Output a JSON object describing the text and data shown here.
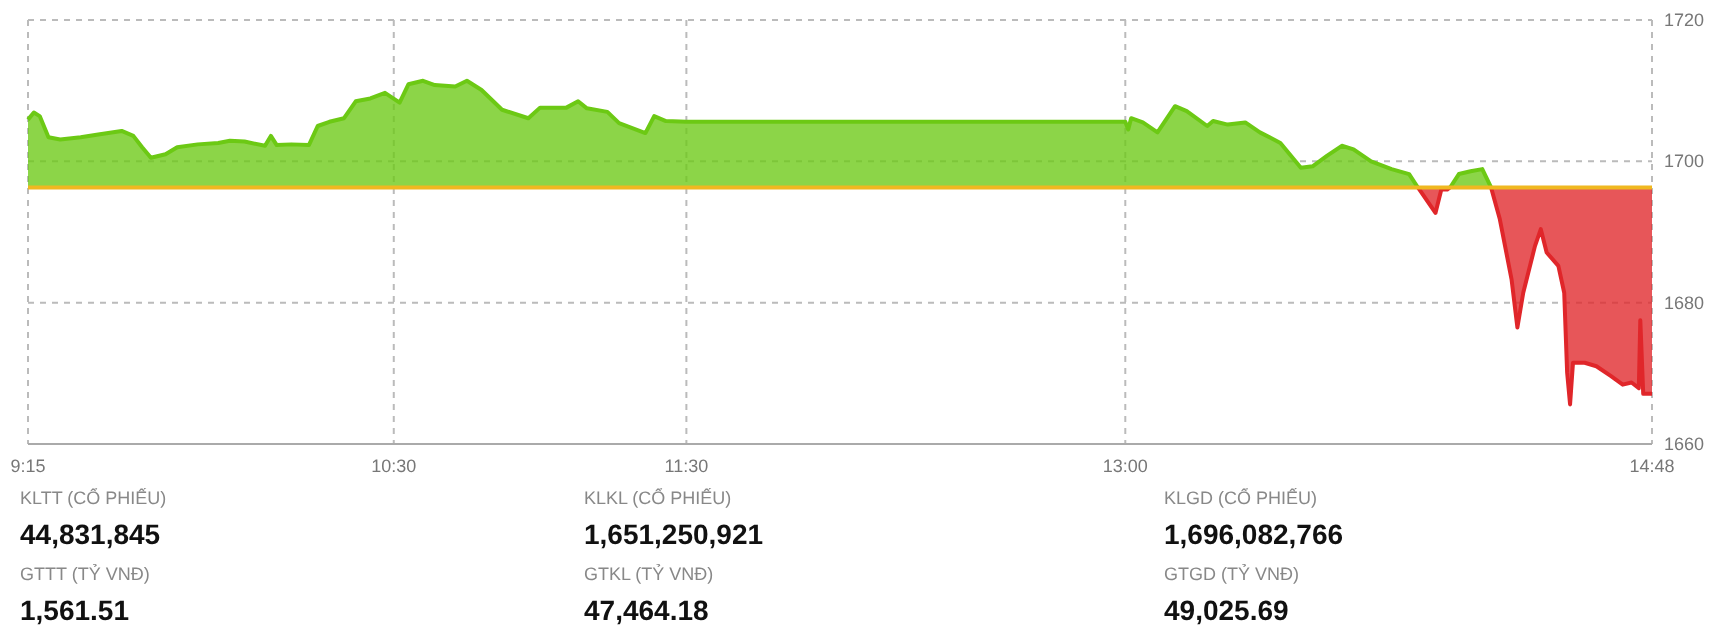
{
  "chart_data": {
    "type": "area",
    "xlim": [
      9.25,
      14.8
    ],
    "ylim": [
      1660,
      1720
    ],
    "xticks": [
      {
        "value": 9.25,
        "label": "9:15"
      },
      {
        "value": 10.5,
        "label": "10:30"
      },
      {
        "value": 11.5,
        "label": "11:30"
      },
      {
        "value": 13,
        "label": "13:00"
      },
      {
        "value": 14.8,
        "label": "14:48"
      }
    ],
    "yticks": [
      1660,
      1680,
      1700,
      1720
    ],
    "grid": true,
    "x": [
      9.25,
      9.27,
      9.29,
      9.32,
      9.36,
      9.43,
      9.49,
      9.57,
      9.61,
      9.64,
      9.67,
      9.72,
      9.76,
      9.83,
      9.9,
      9.94,
      9.99,
      10.06,
      10.08,
      10.1,
      10.15,
      10.21,
      10.24,
      10.28,
      10.33,
      10.37,
      10.42,
      10.47,
      10.52,
      10.55,
      10.6,
      10.64,
      10.71,
      10.75,
      10.8,
      10.87,
      10.96,
      11,
      11.09,
      11.13,
      11.16,
      11.23,
      11.27,
      11.36,
      11.39,
      11.43,
      11.5,
      13,
      13.01,
      13.02,
      13.06,
      13.11,
      13.17,
      13.21,
      13.28,
      13.3,
      13.35,
      13.41,
      13.46,
      13.53,
      13.6,
      13.64,
      13.69,
      13.74,
      13.78,
      13.84,
      13.91,
      13.97,
      14,
      14.06,
      14.08,
      14.1,
      14.11,
      14.14,
      14.18,
      14.22,
      14.25,
      14.28,
      14.32,
      14.34,
      14.36,
      14.4,
      14.42,
      14.44,
      14.48,
      14.5,
      14.51,
      14.52,
      14.53,
      14.57,
      14.61,
      14.66,
      14.7,
      14.73,
      14.755,
      14.76,
      14.77,
      14.8
    ],
    "series": [
      {
        "color": "#6cc914",
        "values": [
          1705.9,
          1706.9,
          1706.4,
          1703.4,
          1703.1,
          1703.4,
          1703.8,
          1704.3,
          1703.6,
          1702,
          1700.5,
          1701,
          1702,
          1702.4,
          1702.6,
          1702.9,
          1702.8,
          1702.2,
          1703.6,
          1702.3,
          1702.4,
          1702.3,
          1705,
          1705.6,
          1706.1,
          1708.5,
          1708.9,
          1709.7,
          1708.3,
          1710.9,
          1711.4,
          1710.8,
          1710.6,
          1711.4,
          1710.1,
          1707.3,
          1706.1,
          1707.6,
          1707.6,
          1708.5,
          1707.5,
          1707,
          1705.4,
          1704,
          1706.4,
          1705.7,
          1705.6,
          1705.6,
          1704.5,
          1706.1,
          1705.5,
          1704.1,
          1707.8,
          1707.1,
          1705,
          1705.7,
          1705.2,
          1705.5,
          1704.1,
          1702.6,
          1699.1,
          1699.3,
          1700.8,
          1702.2,
          1701.7,
          1700,
          1698.9,
          1698.2,
          1696.3,
          null,
          null,
          null,
          1696.3,
          1698.2,
          1698.6,
          1698.9,
          1696.3,
          null,
          null,
          null,
          null,
          null,
          null,
          null,
          null,
          null,
          null,
          null,
          null,
          null,
          null,
          null,
          null,
          null,
          null,
          null,
          null,
          null
        ]
      },
      {
        "type": "line",
        "color": "#e0262a",
        "values": [
          null,
          null,
          null,
          null,
          null,
          null,
          null,
          null,
          null,
          null,
          null,
          null,
          null,
          null,
          null,
          null,
          null,
          null,
          null,
          null,
          null,
          null,
          null,
          null,
          null,
          null,
          null,
          null,
          null,
          null,
          null,
          null,
          null,
          null,
          null,
          null,
          null,
          null,
          null,
          null,
          null,
          null,
          null,
          null,
          null,
          null,
          null,
          null,
          null,
          null,
          null,
          null,
          null,
          null,
          null,
          null,
          null,
          null,
          null,
          null,
          null,
          null,
          null,
          null,
          null,
          null,
          null,
          null,
          1696.3,
          1692.7,
          1696,
          1696,
          1696.3,
          null,
          null,
          null,
          1696.3,
          1691.8,
          1683.3,
          1676.5,
          1681.4,
          1688,
          1690.4,
          1687.1,
          1685.2,
          1681.4,
          1670.1,
          1665.6,
          1671.5,
          1671.5,
          1671,
          1669.6,
          1668.4,
          1668.7,
          1667.9,
          1677.5,
          1667.1,
          1667.1
        ],
        "lower": [
          null,
          null,
          null,
          null,
          null,
          null,
          null,
          null,
          null,
          null,
          null,
          null,
          null,
          null,
          null,
          null,
          null,
          null,
          null,
          null,
          null,
          null,
          null,
          null,
          null,
          null,
          null,
          null,
          null,
          null,
          null,
          null,
          null,
          null,
          null,
          null,
          null,
          null,
          null,
          null,
          null,
          null,
          null,
          null,
          null,
          null,
          null,
          null,
          null,
          null,
          null,
          null,
          null,
          null,
          null,
          null,
          null,
          null,
          null,
          null,
          null,
          null,
          null,
          null,
          null,
          null,
          null,
          null,
          1696.3,
          1692.7,
          1696,
          1696,
          1696.3,
          null,
          null,
          null,
          1696.3,
          1691.8,
          1683.3,
          1676.5,
          1681.4,
          1688,
          1690.4,
          1687.1,
          1685.2,
          1681.4,
          1670.1,
          1665.6,
          1671.5,
          1671.5,
          1671,
          1669.6,
          1668.4,
          1668.7,
          1667.9,
          1677.5,
          1667.1,
          1667.1
        ],
        "upper": [
          null,
          null,
          null,
          null,
          null,
          null,
          null,
          null,
          null,
          null,
          null,
          null,
          null,
          null,
          null,
          null,
          null,
          null,
          null,
          null,
          null,
          null,
          null,
          null,
          null,
          null,
          null,
          null,
          null,
          null,
          null,
          null,
          null,
          null,
          null,
          null,
          null,
          null,
          null,
          null,
          null,
          null,
          null,
          null,
          null,
          null,
          null,
          null,
          null,
          null,
          null,
          null,
          null,
          null,
          null,
          null,
          null,
          null,
          null,
          null,
          null,
          null,
          null,
          null,
          null,
          null,
          null,
          null,
          1696.3,
          1696.3,
          1696.3,
          1696.3,
          1696.3,
          null,
          null,
          null,
          1696.3,
          1696.3,
          1696.3,
          1696.3,
          1696.3,
          1696.3,
          1696.3,
          1696.3,
          1696.3,
          1696.3,
          1696.3,
          1696.3,
          1696.3,
          1696.3,
          1696.3,
          1696.3,
          1696.3,
          1696.3,
          1696.3,
          1696.3,
          1696.3,
          1696.3
        ]
      }
    ],
    "ref_lines": [
      {
        "axis": "y",
        "value": 1696.3,
        "color": "#f0b820"
      }
    ],
    "annotations": [
      "KLTT (CỔ PHIẾU)",
      "44,831,845",
      "KLKL (CỔ PHIẾU)",
      "1,651,250,921",
      "KLGD (CỔ PHIẾU)",
      "1,696,082,766",
      "GTTT (TỶ VNĐ)",
      "1,561.51",
      "GTKL (TỶ VNĐ)",
      "47,464.18",
      "GTGD (TỶ VNĐ)",
      "49,025.69"
    ]
  }
}
